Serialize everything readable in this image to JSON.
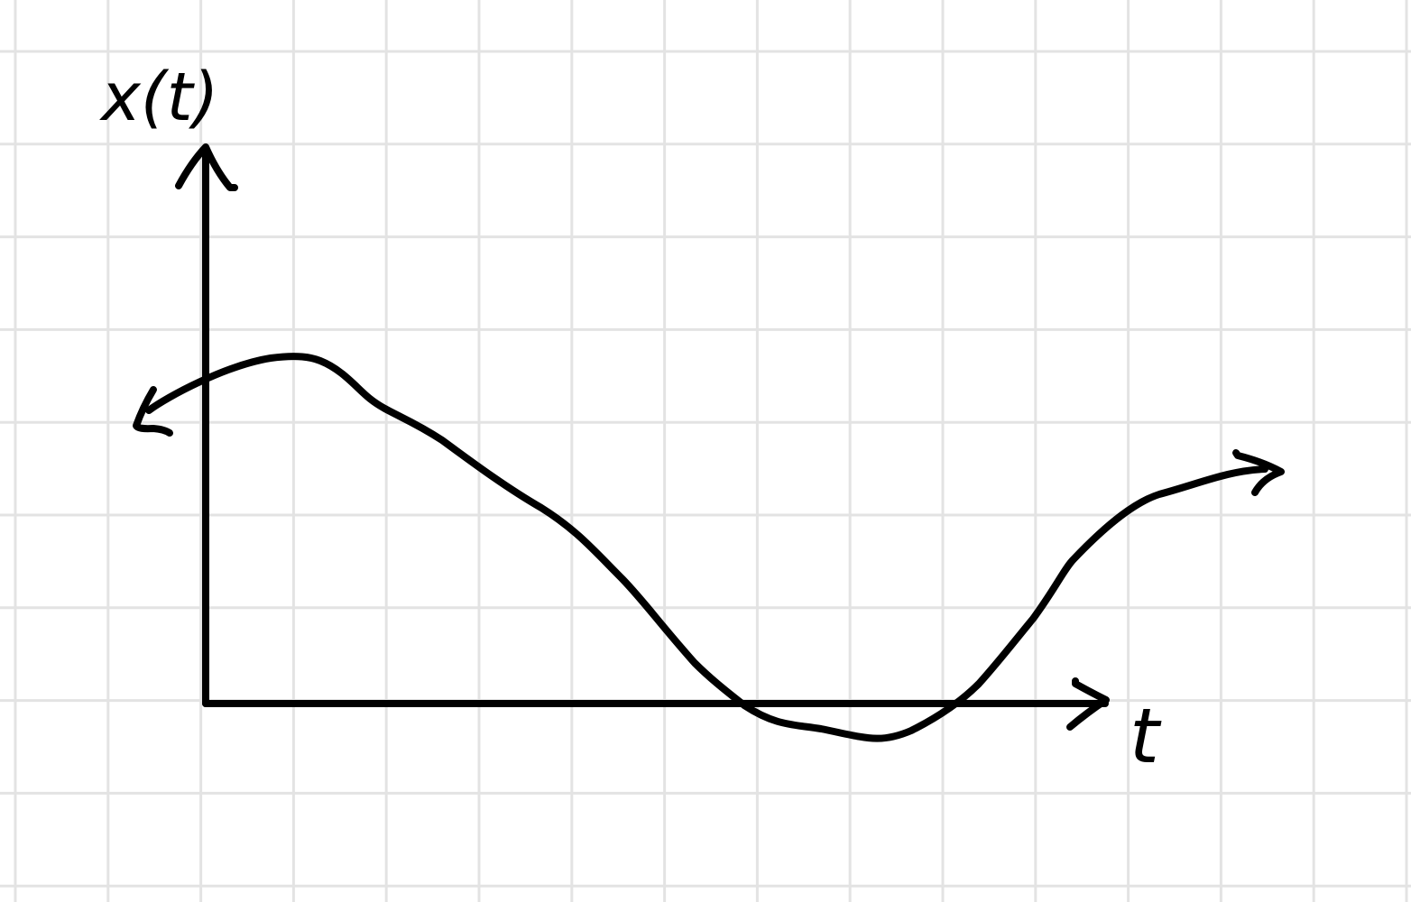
{
  "axes": {
    "y_label": "x(t)",
    "x_label": "t"
  }
}
